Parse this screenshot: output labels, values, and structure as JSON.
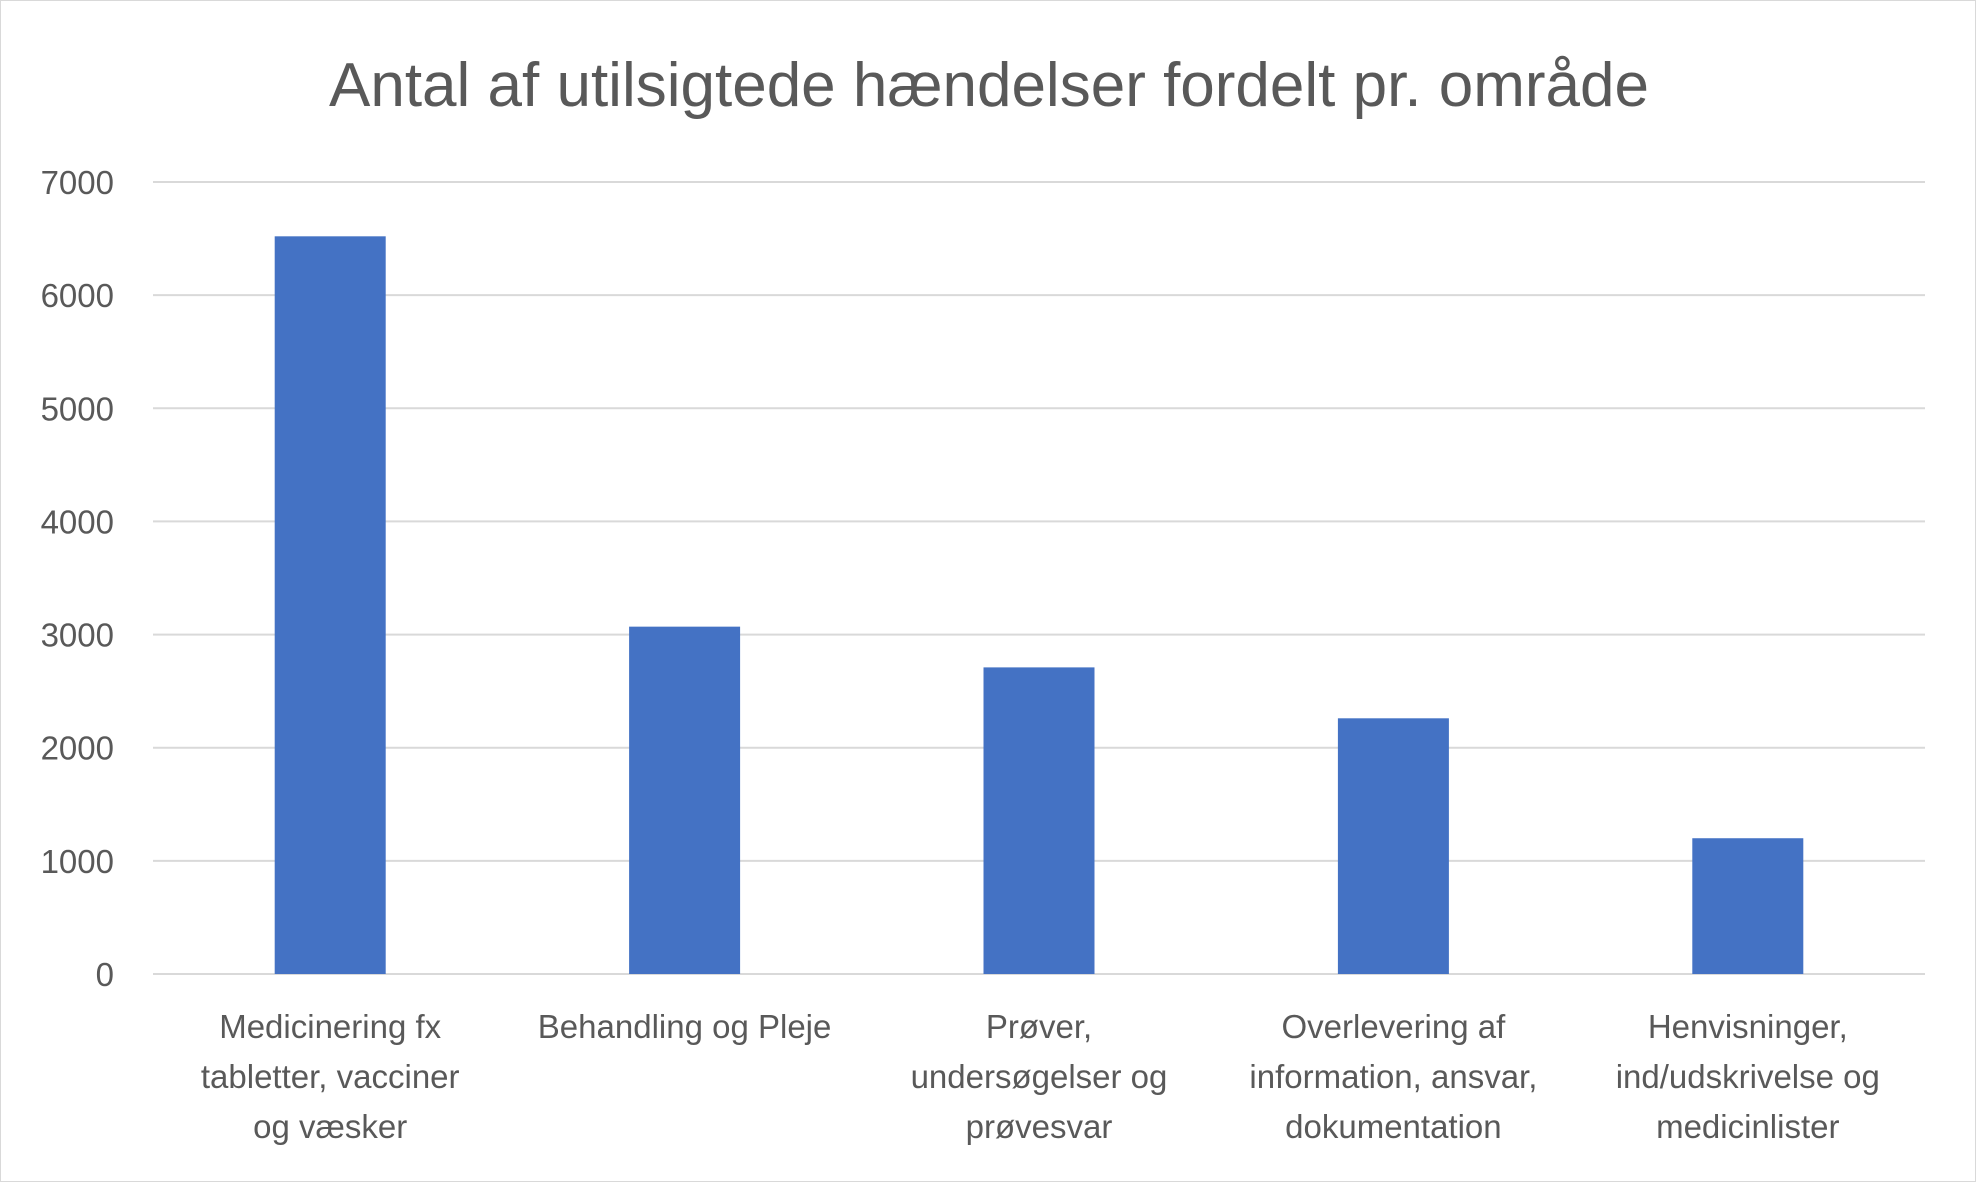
{
  "chart_data": {
    "type": "bar",
    "title": "Antal af utilsigtede hændelser fordelt pr. område",
    "xlabel": "",
    "ylabel": "",
    "categories": [
      [
        "Medicinering fx",
        "tabletter, vacciner",
        "og væsker"
      ],
      [
        "Behandling  og Pleje"
      ],
      [
        "Prøver,",
        "undersøgelser og",
        "prøvesvar"
      ],
      [
        "Overlevering af",
        "information, ansvar,",
        "dokumentation"
      ],
      [
        "Henvisninger,",
        "ind/udskrivelse og",
        "medicinlister"
      ]
    ],
    "values": [
      6520,
      3070,
      2710,
      2260,
      1200
    ],
    "ylim": [
      0,
      7000
    ],
    "yticks": [
      "0",
      "1000",
      "2000",
      "3000",
      "4000",
      "5000",
      "6000",
      "7000"
    ],
    "grid": true,
    "legend": "none",
    "colors": {
      "bar": "#4472C4",
      "grid": "#D9D9D9",
      "text": "#595959"
    }
  }
}
